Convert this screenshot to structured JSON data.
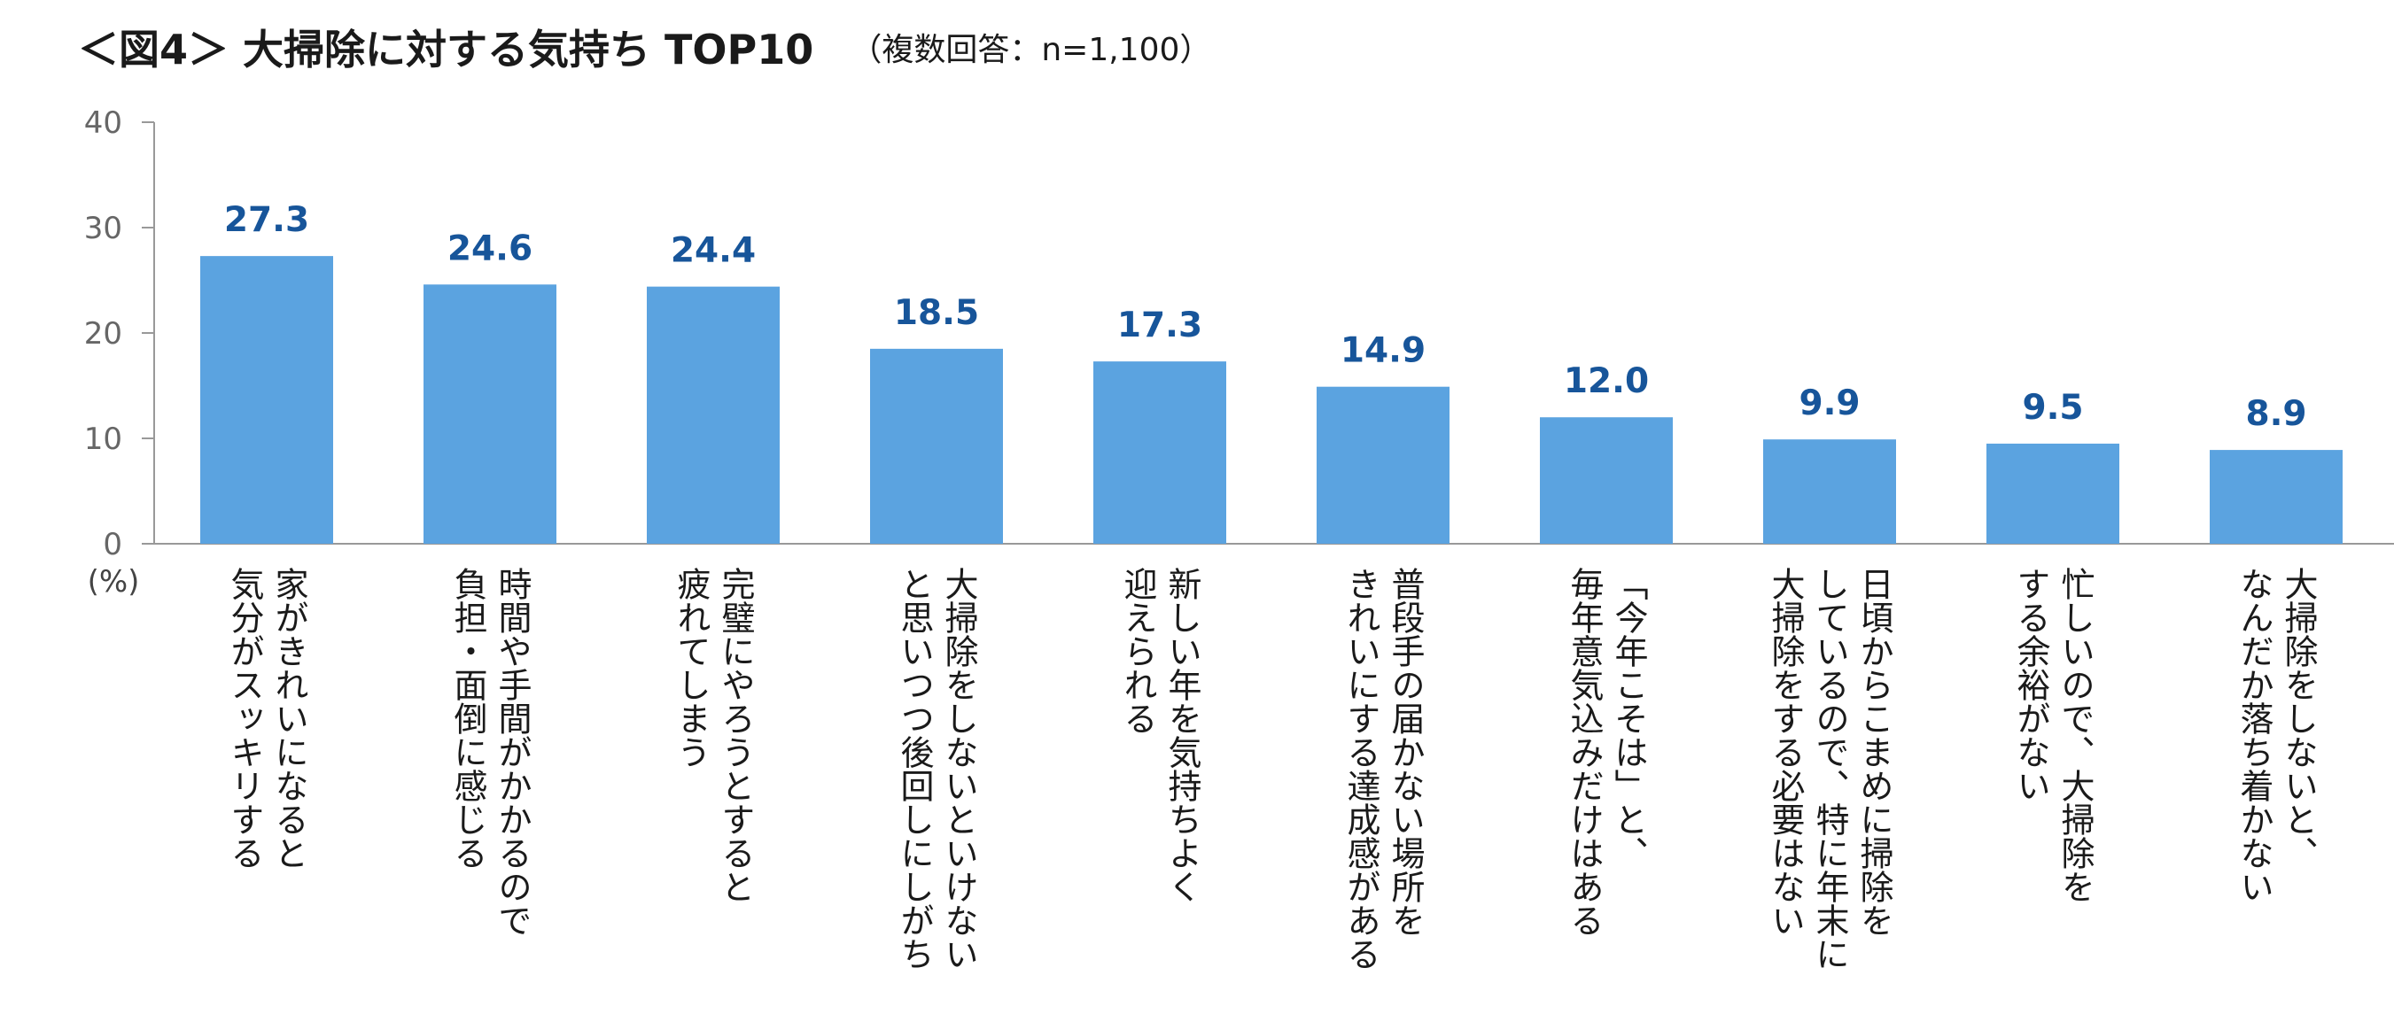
{
  "chart_data": {
    "type": "bar",
    "title": "＜図4＞ 大掃除に対する気持ち TOP10",
    "subtitle": "（複数回答：n=1,100）",
    "ylabel": "(%)",
    "ylim": [
      0,
      40
    ],
    "yticks": [
      0,
      10,
      20,
      30,
      40
    ],
    "grid": false,
    "legend": "none",
    "bar_color": "#5ba3e0",
    "label_color": "#17559a",
    "categories": [
      "家がきれいになると\n気分がスッキリする",
      "時間や手間がかかるので\n負担・面倒に感じる",
      "完璧にやろうとすると\n疲れてしまう",
      "大掃除をしないといけない\nと思いつつ後回しにしがち",
      "新しい年を気持ちよく\n迎えられる",
      "普段手の届かない場所を\nきれいにする達成感がある",
      "「今年こそは」と、\n毎年意気込みだけはある",
      "日頃からこまめに掃除を\nしているので、特に年末に\n大掃除をする必要はない",
      "忙しいので、大掃除を\nする余裕がない",
      "大掃除をしないと、\nなんだか落ち着かない"
    ],
    "values": [
      27.3,
      24.6,
      24.4,
      18.5,
      17.3,
      14.9,
      12.0,
      9.9,
      9.5,
      8.9
    ],
    "value_labels": [
      "27.3",
      "24.6",
      "24.4",
      "18.5",
      "17.3",
      "14.9",
      "12.0",
      "9.9",
      "9.5",
      "8.9"
    ]
  }
}
